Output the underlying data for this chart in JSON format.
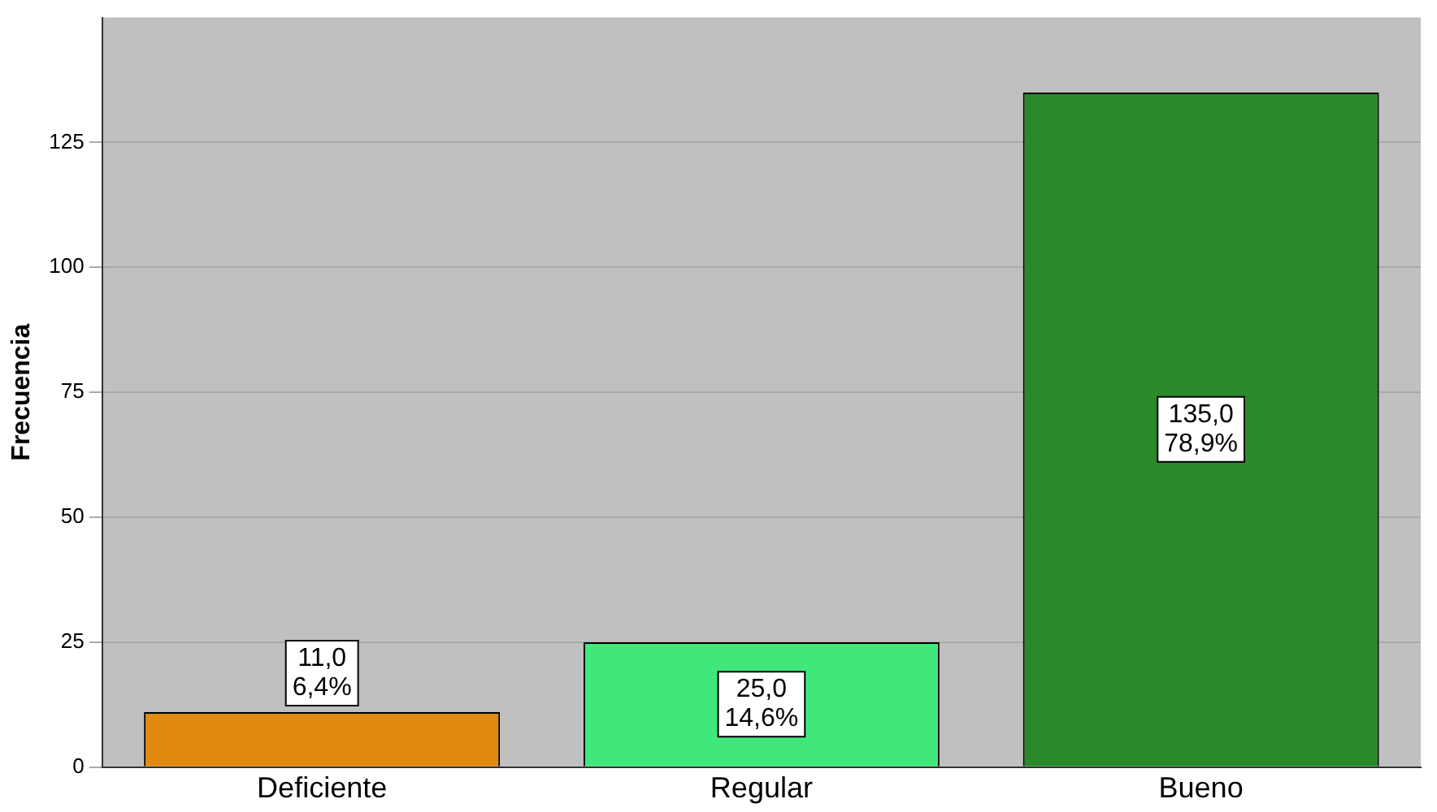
{
  "chart_data": {
    "type": "bar",
    "ylabel": "Frecuencia",
    "categories": [
      "Deficiente",
      "Regular",
      "Bueno"
    ],
    "values": [
      11,
      25,
      135
    ],
    "colors": [
      "#e08a10",
      "#40e87c",
      "#2a8a2a"
    ],
    "value_labels": [
      "11,0\n6,4%",
      "25,0\n14,6%",
      "135,0\n78,9%"
    ],
    "ylim": [
      0,
      150
    ],
    "yticks": [
      0,
      25,
      50,
      75,
      100,
      125
    ],
    "grid": "y",
    "legend": false
  }
}
